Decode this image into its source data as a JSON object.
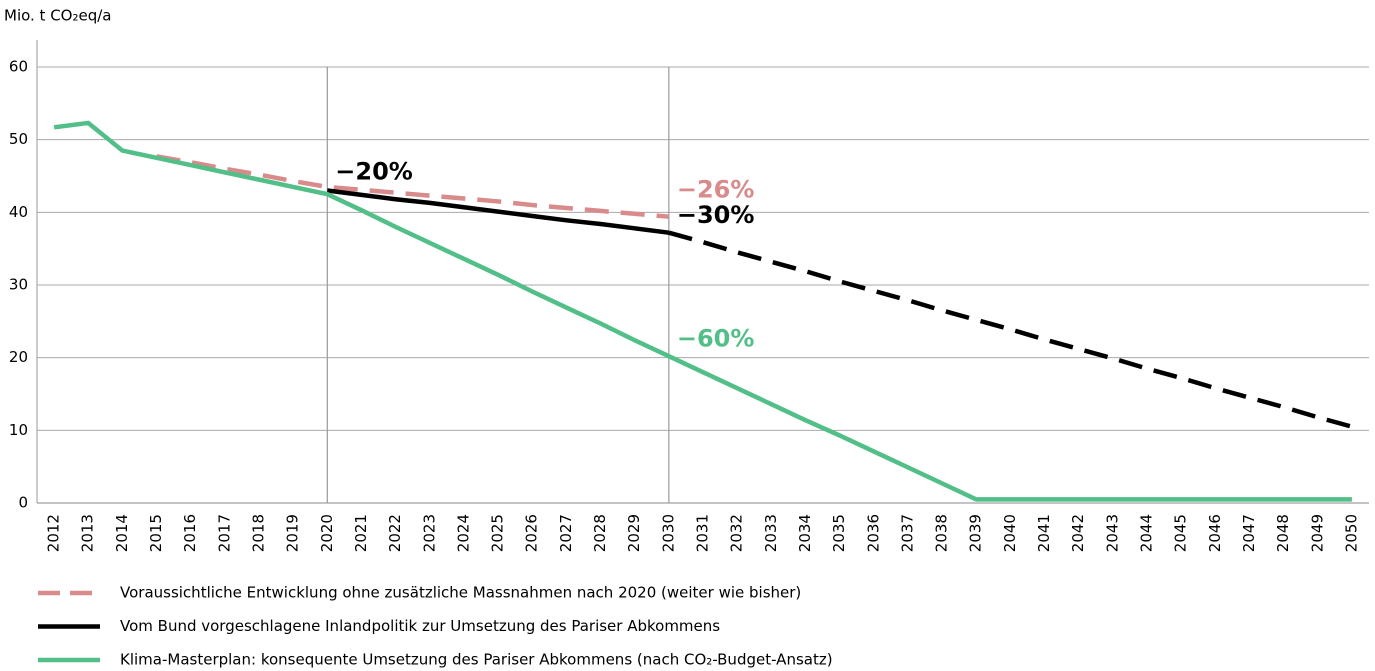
{
  "chart_data": {
    "type": "line",
    "y_axis_label": "Mio. t CO₂eq/a",
    "categories": [
      "2012",
      "2013",
      "2014",
      "2015",
      "2016",
      "2017",
      "2018",
      "2019",
      "2020",
      "2021",
      "2022",
      "2023",
      "2024",
      "2025",
      "2026",
      "2027",
      "2028",
      "2029",
      "2030",
      "2031",
      "2032",
      "2033",
      "2034",
      "2035",
      "2036",
      "2037",
      "2038",
      "2039",
      "2040",
      "2041",
      "2042",
      "2043",
      "2044",
      "2045",
      "2046",
      "2047",
      "2048",
      "2049",
      "2050"
    ],
    "ylim": [
      0,
      60
    ],
    "yticks": [
      0,
      10,
      20,
      30,
      40,
      50,
      60
    ],
    "grid": true,
    "vlines": [
      "2020",
      "2030"
    ],
    "series": [
      {
        "name": "Voraussichtliche Entwicklung ohne zusätzliche Massnahmen nach 2020 (weiter wie bisher)",
        "color": "#d98a8a",
        "dashed": true,
        "values": [
          null,
          null,
          null,
          47.7,
          46.9,
          46.0,
          45.2,
          44.3,
          43.5,
          43.1,
          42.7,
          42.3,
          41.9,
          41.5,
          41.0,
          40.6,
          40.2,
          39.8,
          39.4,
          null,
          null,
          null,
          null,
          null,
          null,
          null,
          null,
          null,
          null,
          null,
          null,
          null,
          null,
          null,
          null,
          null,
          null,
          null,
          null
        ]
      },
      {
        "name": "Vom Bund vorgeschlagene Inlandpolitik zur Umsetzung des Pariser Abkommens",
        "color": "#000000",
        "dashed_from": "2030",
        "values": [
          null,
          null,
          null,
          null,
          null,
          null,
          null,
          null,
          43.0,
          42.4,
          41.8,
          41.3,
          40.7,
          40.1,
          39.5,
          38.9,
          38.4,
          37.8,
          37.2,
          35.9,
          34.5,
          33.2,
          31.9,
          30.5,
          29.2,
          27.9,
          26.5,
          25.2,
          23.9,
          22.5,
          21.2,
          19.9,
          18.5,
          17.2,
          15.8,
          14.5,
          13.2,
          11.8,
          10.5
        ]
      },
      {
        "name": "Klima-Masterplan: konsequente Umsetzung des Pariser Abkommens (nach CO₂-Budget-Ansatz)",
        "color": "#52bf88",
        "values": [
          51.7,
          52.3,
          48.5,
          47.5,
          46.5,
          45.5,
          44.5,
          43.5,
          42.5,
          40.3,
          38.0,
          35.8,
          33.6,
          31.4,
          29.1,
          26.9,
          24.7,
          22.4,
          20.2,
          18.0,
          15.8,
          13.6,
          11.4,
          9.3,
          7.1,
          4.9,
          2.7,
          0.5,
          0.5,
          0.5,
          0.5,
          0.5,
          0.5,
          0.5,
          0.5,
          0.5,
          0.5,
          0.5,
          0.5
        ]
      }
    ],
    "annotations": [
      {
        "text": "−20%",
        "x": "2020",
        "y": 45.5,
        "color": "#000000"
      },
      {
        "text": "−26%",
        "x": "2030",
        "y": 43.0,
        "color": "#d98a8a"
      },
      {
        "text": "−30%",
        "x": "2030",
        "y": 39.5,
        "color": "#000000"
      },
      {
        "text": "−60%",
        "x": "2030",
        "y": 22.5,
        "color": "#52bf88"
      }
    ]
  }
}
